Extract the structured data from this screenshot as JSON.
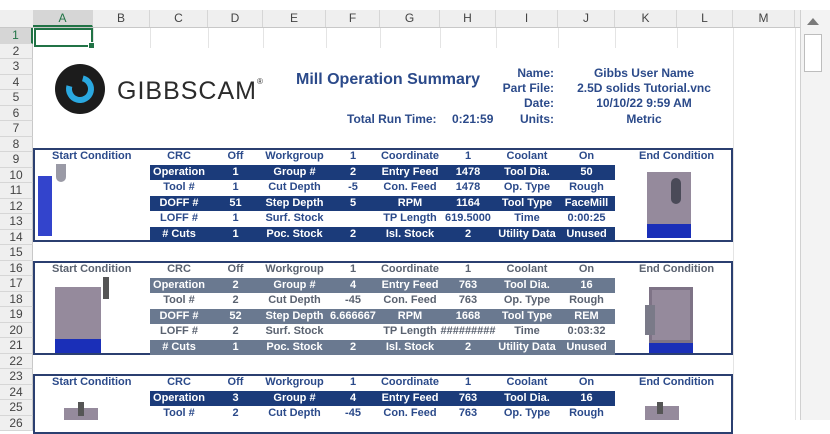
{
  "columns": [
    "A",
    "B",
    "C",
    "D",
    "E",
    "F",
    "G",
    "H",
    "I",
    "J",
    "K",
    "L",
    "M"
  ],
  "rows": [
    "1",
    "2",
    "3",
    "4",
    "5",
    "6",
    "7",
    "8",
    "9",
    "10",
    "11",
    "12",
    "13",
    "14",
    "15",
    "16",
    "17",
    "18",
    "19",
    "20",
    "21",
    "22",
    "23",
    "24",
    "25",
    "26"
  ],
  "logo": {
    "text": "GIBBSCAM",
    "mark": "®"
  },
  "summary": {
    "title": "Mill Operation Summary",
    "name_label": "Name:",
    "name_value": "Gibbs User Name",
    "part_label": "Part File:",
    "part_value": "2.5D solids Tutorial.vnc",
    "date_label": "Date:",
    "date_value": "10/10/22 9:59 AM",
    "units_label": "Units:",
    "units_value": "Metric",
    "runtime_label": "Total Run Time:",
    "runtime_value": "0:21:59"
  },
  "operations": [
    {
      "start_label": "Start Condition",
      "end_label": "End Condition",
      "header": [
        "CRC",
        "Off",
        "Workgroup",
        "1",
        "Coordinate",
        "1",
        "Coolant",
        "On"
      ],
      "rows": [
        [
          "Operation",
          "1",
          "Group #",
          "2",
          "Entry Feed",
          "1478",
          "Tool Dia.",
          "50"
        ],
        [
          "Tool #",
          "1",
          "Cut Depth",
          "-5",
          "Con. Feed",
          "1478",
          "Op. Type",
          "Rough"
        ],
        [
          "DOFF #",
          "51",
          "Step Depth",
          "5",
          "RPM",
          "1164",
          "Tool Type",
          "FaceMill"
        ],
        [
          "LOFF #",
          "1",
          "Surf. Stock",
          "",
          "TP Length",
          "619.5000",
          "Time",
          "0:00:25"
        ],
        [
          "# Cuts",
          "1",
          "Poc. Stock",
          "2",
          "Isl. Stock",
          "2",
          "Utility Data",
          "Unused"
        ]
      ]
    },
    {
      "start_label": "Start Condition",
      "end_label": "End Condition",
      "header": [
        "CRC",
        "Off",
        "Workgroup",
        "1",
        "Coordinate",
        "1",
        "Coolant",
        "On"
      ],
      "rows": [
        [
          "Operation",
          "2",
          "Group #",
          "4",
          "Entry Feed",
          "763",
          "Tool Dia.",
          "16"
        ],
        [
          "Tool #",
          "2",
          "Cut Depth",
          "-45",
          "Con. Feed",
          "763",
          "Op. Type",
          "Rough"
        ],
        [
          "DOFF #",
          "52",
          "Step Depth",
          "6.666667",
          "RPM",
          "1668",
          "Tool Type",
          "REM"
        ],
        [
          "LOFF #",
          "2",
          "Surf. Stock",
          "",
          "TP Length",
          "#########",
          "Time",
          "0:03:32"
        ],
        [
          "# Cuts",
          "1",
          "Poc. Stock",
          "2",
          "Isl. Stock",
          "2",
          "Utility Data",
          "Unused"
        ]
      ]
    },
    {
      "start_label": "Start Condition",
      "end_label": "End Condition",
      "header": [
        "CRC",
        "Off",
        "Workgroup",
        "1",
        "Coordinate",
        "1",
        "Coolant",
        "On"
      ],
      "rows": [
        [
          "Operation",
          "3",
          "Group #",
          "4",
          "Entry Feed",
          "763",
          "Tool Dia.",
          "16"
        ],
        [
          "Tool #",
          "2",
          "Cut Depth",
          "-45",
          "Con. Feed",
          "763",
          "Op. Type",
          "Rough"
        ]
      ]
    }
  ],
  "colors": {
    "accent": "#217346",
    "title_blue": "#2b4a8a",
    "bar_dark": "#1b3b7a",
    "bar_grey": "#6a7990"
  }
}
